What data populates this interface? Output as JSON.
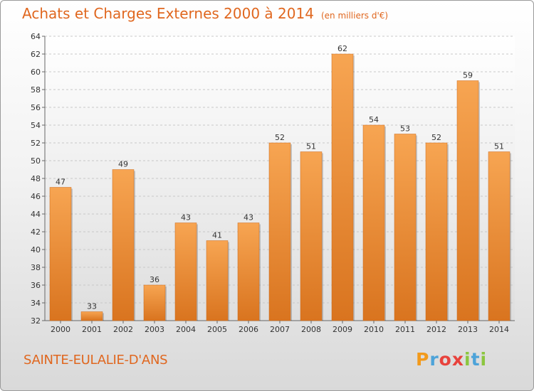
{
  "header": {
    "title": "Achats et Charges Externes 2000 à 2014",
    "unit": "(en milliers d'€)"
  },
  "commune": "SAINTE-EULALIE-D'ANS",
  "logo": {
    "text": "Proxiti",
    "letters": [
      "P",
      "r",
      "o",
      "x",
      "i",
      "t",
      "i"
    ],
    "colors": [
      "#f29a1c",
      "#4da3d9",
      "#e8423c",
      "#e8423c",
      "#8cc63f",
      "#4da3d9",
      "#8cc63f"
    ]
  },
  "colors": {
    "accent": "#e0671f",
    "bar_top": "#f7a552",
    "bar_bottom": "#d9741f"
  },
  "chart_data": {
    "type": "bar",
    "categories": [
      "2000",
      "2001",
      "2002",
      "2003",
      "2004",
      "2005",
      "2006",
      "2007",
      "2008",
      "2009",
      "2010",
      "2011",
      "2012",
      "2013",
      "2014"
    ],
    "values": [
      47,
      33,
      49,
      36,
      43,
      41,
      43,
      52,
      51,
      62,
      54,
      53,
      52,
      59,
      51
    ],
    "ylim": [
      32,
      64
    ],
    "yticks": [
      32,
      34,
      36,
      38,
      40,
      42,
      44,
      46,
      48,
      50,
      52,
      54,
      56,
      58,
      60,
      62,
      64
    ],
    "grid": true,
    "data_labels": true
  }
}
